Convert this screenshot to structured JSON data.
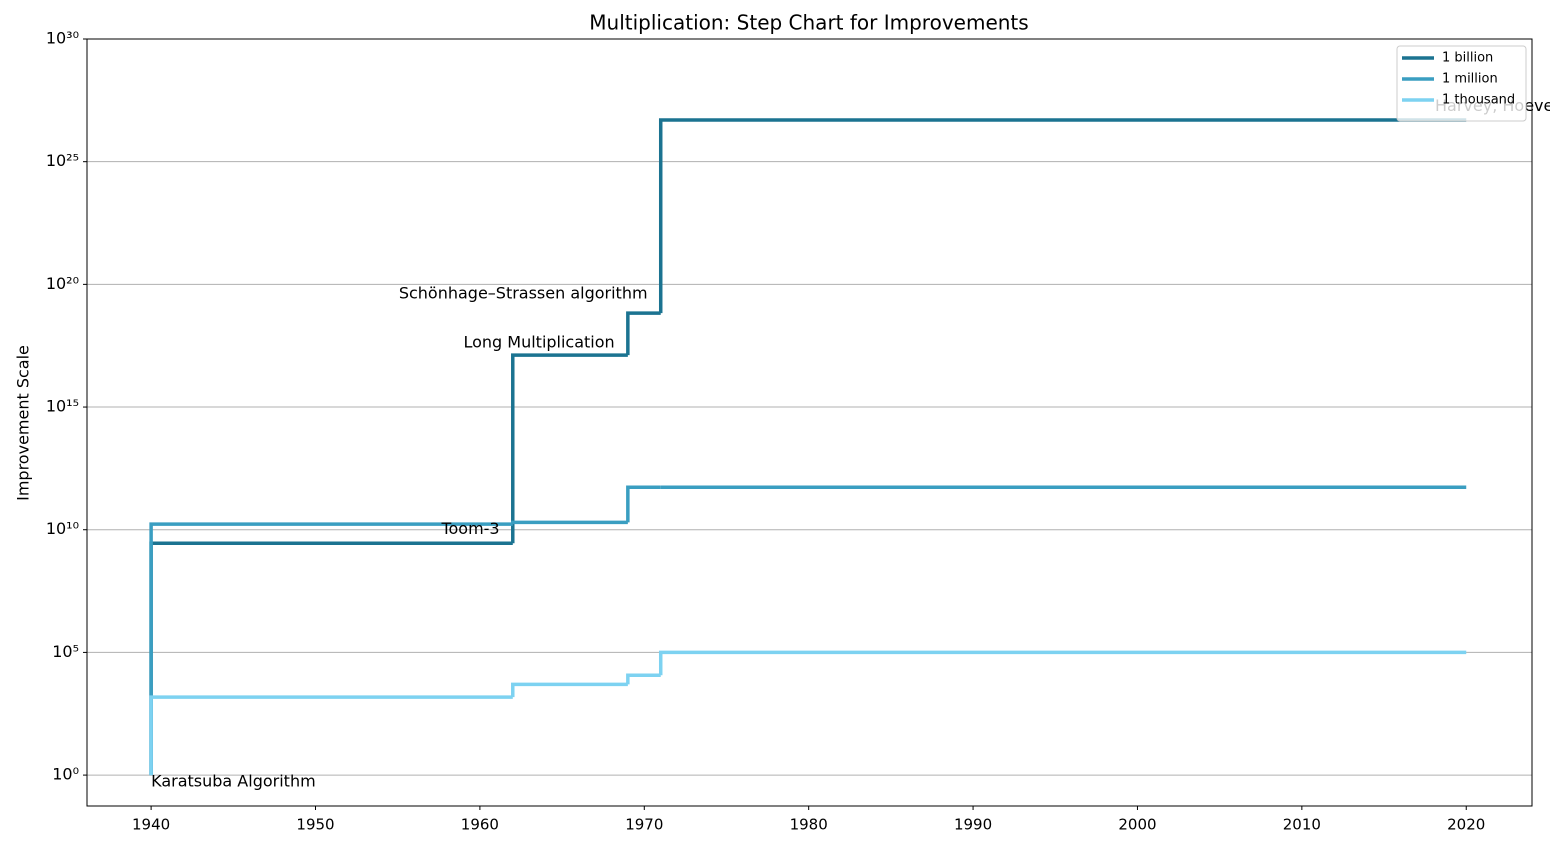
{
  "chart_data": {
    "type": "step",
    "title": "Multiplication: Step Chart for Improvements",
    "ylabel": "Improvement Scale",
    "x": [
      1940,
      1962,
      1969,
      1971,
      2020
    ],
    "series": [
      {
        "name": "1 billion",
        "color": "#1b7391",
        "values": [
          1,
          2800000000,
          130000000000000000,
          6700000000000000000,
          5e+26
        ]
      },
      {
        "name": "1 million",
        "color": "#3a9ec1",
        "values": [
          1,
          17000000000,
          20000000000,
          540000000000,
          540000000000
        ]
      },
      {
        "name": "1 thousand",
        "color": "#7dd2f1",
        "values": [
          1,
          1500,
          5000,
          11700,
          100000
        ]
      }
    ],
    "annotations": [
      {
        "text": "Karatsuba Algorithm",
        "x": 1940,
        "y": 0.52,
        "align": "left"
      },
      {
        "text": "Toom-3",
        "x": 1961.2,
        "y": 10000000000,
        "align": "right"
      },
      {
        "text": "Long Multiplication",
        "x": 1968.2,
        "y": 400000000000000000,
        "align": "right"
      },
      {
        "text": "Schönhage–Strassen algorithm",
        "x": 1970.2,
        "y": 40000000000000000000,
        "align": "right"
      },
      {
        "text": "Harvey, Hoeven",
        "x": 2018.1,
        "y": 1.8e+27,
        "align": "left"
      }
    ],
    "xlim": [
      1936.1,
      2024
    ],
    "xticks": [
      1940,
      1950,
      1960,
      1970,
      1980,
      1990,
      2000,
      2010,
      2020
    ],
    "ylim": [
      0.055,
      1e+30
    ],
    "ylog": true,
    "yticks": [
      {
        "value": 1,
        "label": "10⁰"
      },
      {
        "value": 100000,
        "label": "10⁵"
      },
      {
        "value": 10000000000,
        "label": "10¹⁰"
      },
      {
        "value": 1000000000000000,
        "label": "10¹⁵"
      },
      {
        "value": 100000000000000000000,
        "label": "10²⁰"
      },
      {
        "value": 1e+25,
        "label": "10²⁵"
      },
      {
        "value": 1e+30,
        "label": "10³⁰"
      }
    ],
    "grid": "y",
    "legend": "upper right"
  }
}
